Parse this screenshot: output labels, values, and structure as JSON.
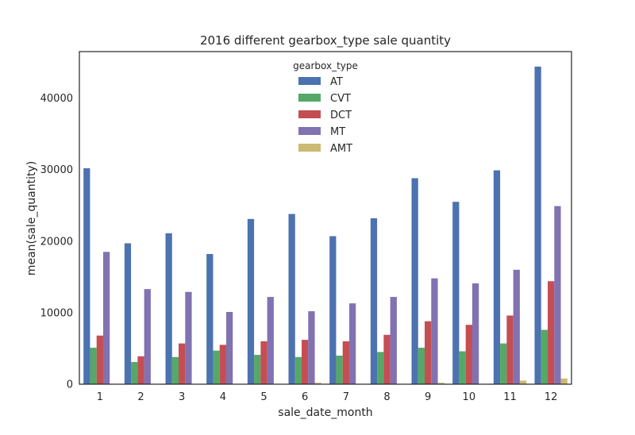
{
  "chart_data": {
    "type": "bar",
    "title": "2016 different gearbox_type sale quantity",
    "xlabel": "sale_date_month",
    "ylabel": "mean(sale_quantity)",
    "categories": [
      "1",
      "2",
      "3",
      "4",
      "5",
      "6",
      "7",
      "8",
      "9",
      "10",
      "11",
      "12"
    ],
    "ylim": [
      0,
      46500
    ],
    "yticks": [
      0,
      10000,
      20000,
      30000,
      40000
    ],
    "grid": false,
    "legend": {
      "title": "gearbox_type",
      "placement": "top-center"
    },
    "series": [
      {
        "name": "AT",
        "color": "#4c72b0",
        "values": [
          30200,
          19700,
          21100,
          18200,
          23100,
          23800,
          20700,
          23200,
          28800,
          25500,
          29900,
          44400
        ]
      },
      {
        "name": "CVT",
        "color": "#55a868",
        "values": [
          5100,
          3100,
          3800,
          4700,
          4100,
          3800,
          4000,
          4500,
          5100,
          4600,
          5700,
          7600
        ]
      },
      {
        "name": "DCT",
        "color": "#c44e52",
        "values": [
          6800,
          3900,
          5700,
          5500,
          6000,
          6200,
          6000,
          6900,
          8800,
          8300,
          9600,
          14400
        ]
      },
      {
        "name": "MT",
        "color": "#8172b2",
        "values": [
          18500,
          13300,
          12900,
          10100,
          12200,
          10200,
          11300,
          12200,
          14800,
          14100,
          16000,
          24900
        ]
      },
      {
        "name": "AMT",
        "color": "#ccb974",
        "values": [
          0,
          0,
          0,
          0,
          0,
          200,
          0,
          0,
          200,
          0,
          500,
          800
        ]
      }
    ]
  }
}
